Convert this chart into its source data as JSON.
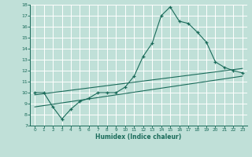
{
  "xlabel": "Humidex (Indice chaleur)",
  "ylabel": "",
  "xlim": [
    -0.5,
    23.5
  ],
  "ylim": [
    7,
    18
  ],
  "xticks": [
    0,
    1,
    2,
    3,
    4,
    5,
    6,
    7,
    8,
    9,
    10,
    11,
    12,
    13,
    14,
    15,
    16,
    17,
    18,
    19,
    20,
    21,
    22,
    23
  ],
  "yticks": [
    7,
    8,
    9,
    10,
    11,
    12,
    13,
    14,
    15,
    16,
    17,
    18
  ],
  "bg_color": "#c0e0d8",
  "line_color": "#1a6b5a",
  "grid_color": "#ffffff",
  "line1_x": [
    0,
    1,
    2,
    3,
    4,
    5,
    6,
    7,
    8,
    9,
    10,
    11,
    12,
    13,
    14,
    15,
    16,
    17,
    18,
    19,
    20,
    21,
    22,
    23
  ],
  "line1_y": [
    10.0,
    10.0,
    8.7,
    7.6,
    8.5,
    9.2,
    9.5,
    10.0,
    10.0,
    10.0,
    10.5,
    11.5,
    13.3,
    14.5,
    17.0,
    17.8,
    16.5,
    16.3,
    15.5,
    14.6,
    12.8,
    12.3,
    12.0,
    11.8
  ],
  "line2_x": [
    0,
    23
  ],
  "line2_y": [
    9.8,
    12.2
  ],
  "line3_x": [
    0,
    23
  ],
  "line3_y": [
    8.7,
    11.5
  ]
}
